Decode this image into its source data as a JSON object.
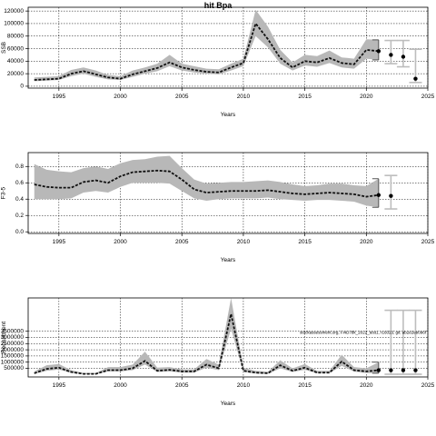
{
  "title": "hit Bpa",
  "chart_data": [
    {
      "type": "line",
      "xlabel": "Years",
      "ylabel": "SSB",
      "xlim": [
        1992.5,
        2025
      ],
      "ylim": [
        -3000,
        126000
      ],
      "xticks": [
        1995,
        2000,
        2005,
        2010,
        2015,
        2020,
        2025
      ],
      "yticks": [
        0,
        20000,
        40000,
        60000,
        80000,
        100000,
        120000
      ],
      "ytick_labels": [
        "0",
        "20000",
        "40000",
        "60000",
        "80000",
        "100000",
        "120000"
      ],
      "grid": true,
      "x": [
        1993,
        1994,
        1995,
        1996,
        1997,
        1998,
        1999,
        2000,
        2001,
        2002,
        2003,
        2004,
        2005,
        2006,
        2007,
        2008,
        2009,
        2010,
        2011,
        2012,
        2013,
        2014,
        2015,
        2016,
        2017,
        2018,
        2019,
        2020,
        2021
      ],
      "estimate": [
        10000,
        11000,
        12000,
        20000,
        24000,
        19000,
        14000,
        12000,
        19000,
        24000,
        29000,
        38000,
        30000,
        26000,
        23000,
        22000,
        30000,
        37000,
        100000,
        75000,
        45000,
        30000,
        40000,
        38000,
        45000,
        37000,
        35000,
        58000,
        56000
      ],
      "lower": [
        8000,
        9000,
        10000,
        16000,
        20000,
        15000,
        11000,
        10000,
        15000,
        20000,
        24000,
        32000,
        25000,
        22000,
        20000,
        19000,
        25000,
        32000,
        80000,
        62000,
        36000,
        25000,
        33000,
        31000,
        37000,
        30000,
        28000,
        44000,
        42000
      ],
      "upper": [
        14000,
        15000,
        16000,
        26000,
        30000,
        25000,
        18000,
        16000,
        25000,
        30000,
        36000,
        50000,
        36000,
        32000,
        28000,
        27000,
        36000,
        44000,
        122000,
        95000,
        58000,
        38000,
        50000,
        48000,
        57000,
        46000,
        44000,
        75000,
        74000
      ],
      "projection": {
        "x": [
          2022,
          2023,
          2024
        ],
        "estimate": [
          50000,
          47000,
          12000
        ],
        "lower": [
          36000,
          31000,
          6000
        ],
        "upper": [
          73000,
          73000,
          59000
        ]
      }
    },
    {
      "type": "line",
      "xlabel": "Years",
      "ylabel": "F3-5",
      "xlim": [
        1992.5,
        2025
      ],
      "ylim": [
        -0.02,
        0.97
      ],
      "xticks": [
        1995,
        2000,
        2005,
        2010,
        2015,
        2020,
        2025
      ],
      "yticks": [
        0,
        0.2,
        0.4,
        0.6,
        0.8
      ],
      "ytick_labels": [
        "0.0",
        "0.2",
        "0.4",
        "0.6",
        "0.8"
      ],
      "grid": true,
      "x": [
        1993,
        1994,
        1995,
        1996,
        1997,
        1998,
        1999,
        2000,
        2001,
        2002,
        2003,
        2004,
        2005,
        2006,
        2007,
        2008,
        2009,
        2010,
        2011,
        2012,
        2013,
        2014,
        2015,
        2016,
        2017,
        2018,
        2019,
        2020,
        2021
      ],
      "estimate": [
        0.58,
        0.55,
        0.54,
        0.54,
        0.61,
        0.63,
        0.6,
        0.68,
        0.73,
        0.74,
        0.75,
        0.74,
        0.64,
        0.52,
        0.48,
        0.49,
        0.5,
        0.5,
        0.5,
        0.51,
        0.49,
        0.47,
        0.46,
        0.47,
        0.48,
        0.47,
        0.46,
        0.43,
        0.45
      ],
      "lower": [
        0.4,
        0.4,
        0.4,
        0.41,
        0.48,
        0.5,
        0.48,
        0.55,
        0.6,
        0.6,
        0.6,
        0.59,
        0.5,
        0.41,
        0.38,
        0.4,
        0.41,
        0.41,
        0.41,
        0.42,
        0.4,
        0.39,
        0.38,
        0.39,
        0.39,
        0.38,
        0.37,
        0.32,
        0.3
      ],
      "upper": [
        0.83,
        0.76,
        0.74,
        0.73,
        0.78,
        0.8,
        0.77,
        0.84,
        0.88,
        0.89,
        0.92,
        0.93,
        0.78,
        0.64,
        0.59,
        0.6,
        0.61,
        0.61,
        0.62,
        0.63,
        0.61,
        0.58,
        0.56,
        0.57,
        0.59,
        0.59,
        0.57,
        0.56,
        0.65
      ],
      "projection": {
        "x": [
          2022
        ],
        "estimate": [
          0.44
        ],
        "lower": [
          0.28
        ],
        "upper": [
          0.69
        ]
      }
    },
    {
      "type": "line",
      "xlabel": "Years",
      "ylabel": "Recruitment",
      "xlim": [
        1992.5,
        2025
      ],
      "ylim": [
        -200000,
        6200000
      ],
      "xticks": [
        1995,
        2000,
        2005,
        2010,
        2015,
        2020,
        2025
      ],
      "yticks": [
        500000,
        1000000,
        1500000,
        2000000,
        2500000,
        3000000,
        3500000
      ],
      "ytick_labels": [
        "500000",
        "1000000",
        "1500000",
        "2000000",
        "2500000",
        "3000000",
        "3500000"
      ],
      "grid": true,
      "annotation": "stockassessment.org, Fi4D7bk_2022_test1, r16023, git: ab2e2eb096f",
      "x": [
        1993,
        1994,
        1995,
        1996,
        1997,
        1998,
        1999,
        2000,
        2001,
        2002,
        2003,
        2004,
        2005,
        2006,
        2007,
        2008,
        2009,
        2010,
        2011,
        2012,
        2013,
        2014,
        2015,
        2016,
        2017,
        2018,
        2019,
        2020,
        2021
      ],
      "estimate": [
        100000,
        450000,
        550000,
        200000,
        50000,
        50000,
        350000,
        350000,
        500000,
        1100000,
        300000,
        380000,
        250000,
        250000,
        800000,
        500000,
        4900000,
        300000,
        150000,
        100000,
        750000,
        300000,
        550000,
        150000,
        150000,
        1050000,
        350000,
        250000,
        350000
      ],
      "lower": [
        50000,
        300000,
        400000,
        130000,
        20000,
        20000,
        250000,
        250000,
        350000,
        800000,
        200000,
        250000,
        150000,
        150000,
        550000,
        350000,
        3700000,
        200000,
        80000,
        50000,
        500000,
        200000,
        380000,
        100000,
        100000,
        700000,
        230000,
        120000,
        100000
      ],
      "upper": [
        250000,
        750000,
        850000,
        350000,
        120000,
        120000,
        600000,
        600000,
        800000,
        1850000,
        550000,
        600000,
        420000,
        420000,
        1250000,
        800000,
        6200000,
        550000,
        300000,
        220000,
        1150000,
        500000,
        850000,
        300000,
        300000,
        1600000,
        600000,
        500000,
        1000000
      ],
      "projection": {
        "x": [
          2022,
          2023,
          2024
        ],
        "estimate": [
          350000,
          350000,
          350000
        ],
        "lower": [
          20000,
          20000,
          20000
        ],
        "upper": [
          5200000,
          5200000,
          5200000
        ]
      }
    }
  ]
}
